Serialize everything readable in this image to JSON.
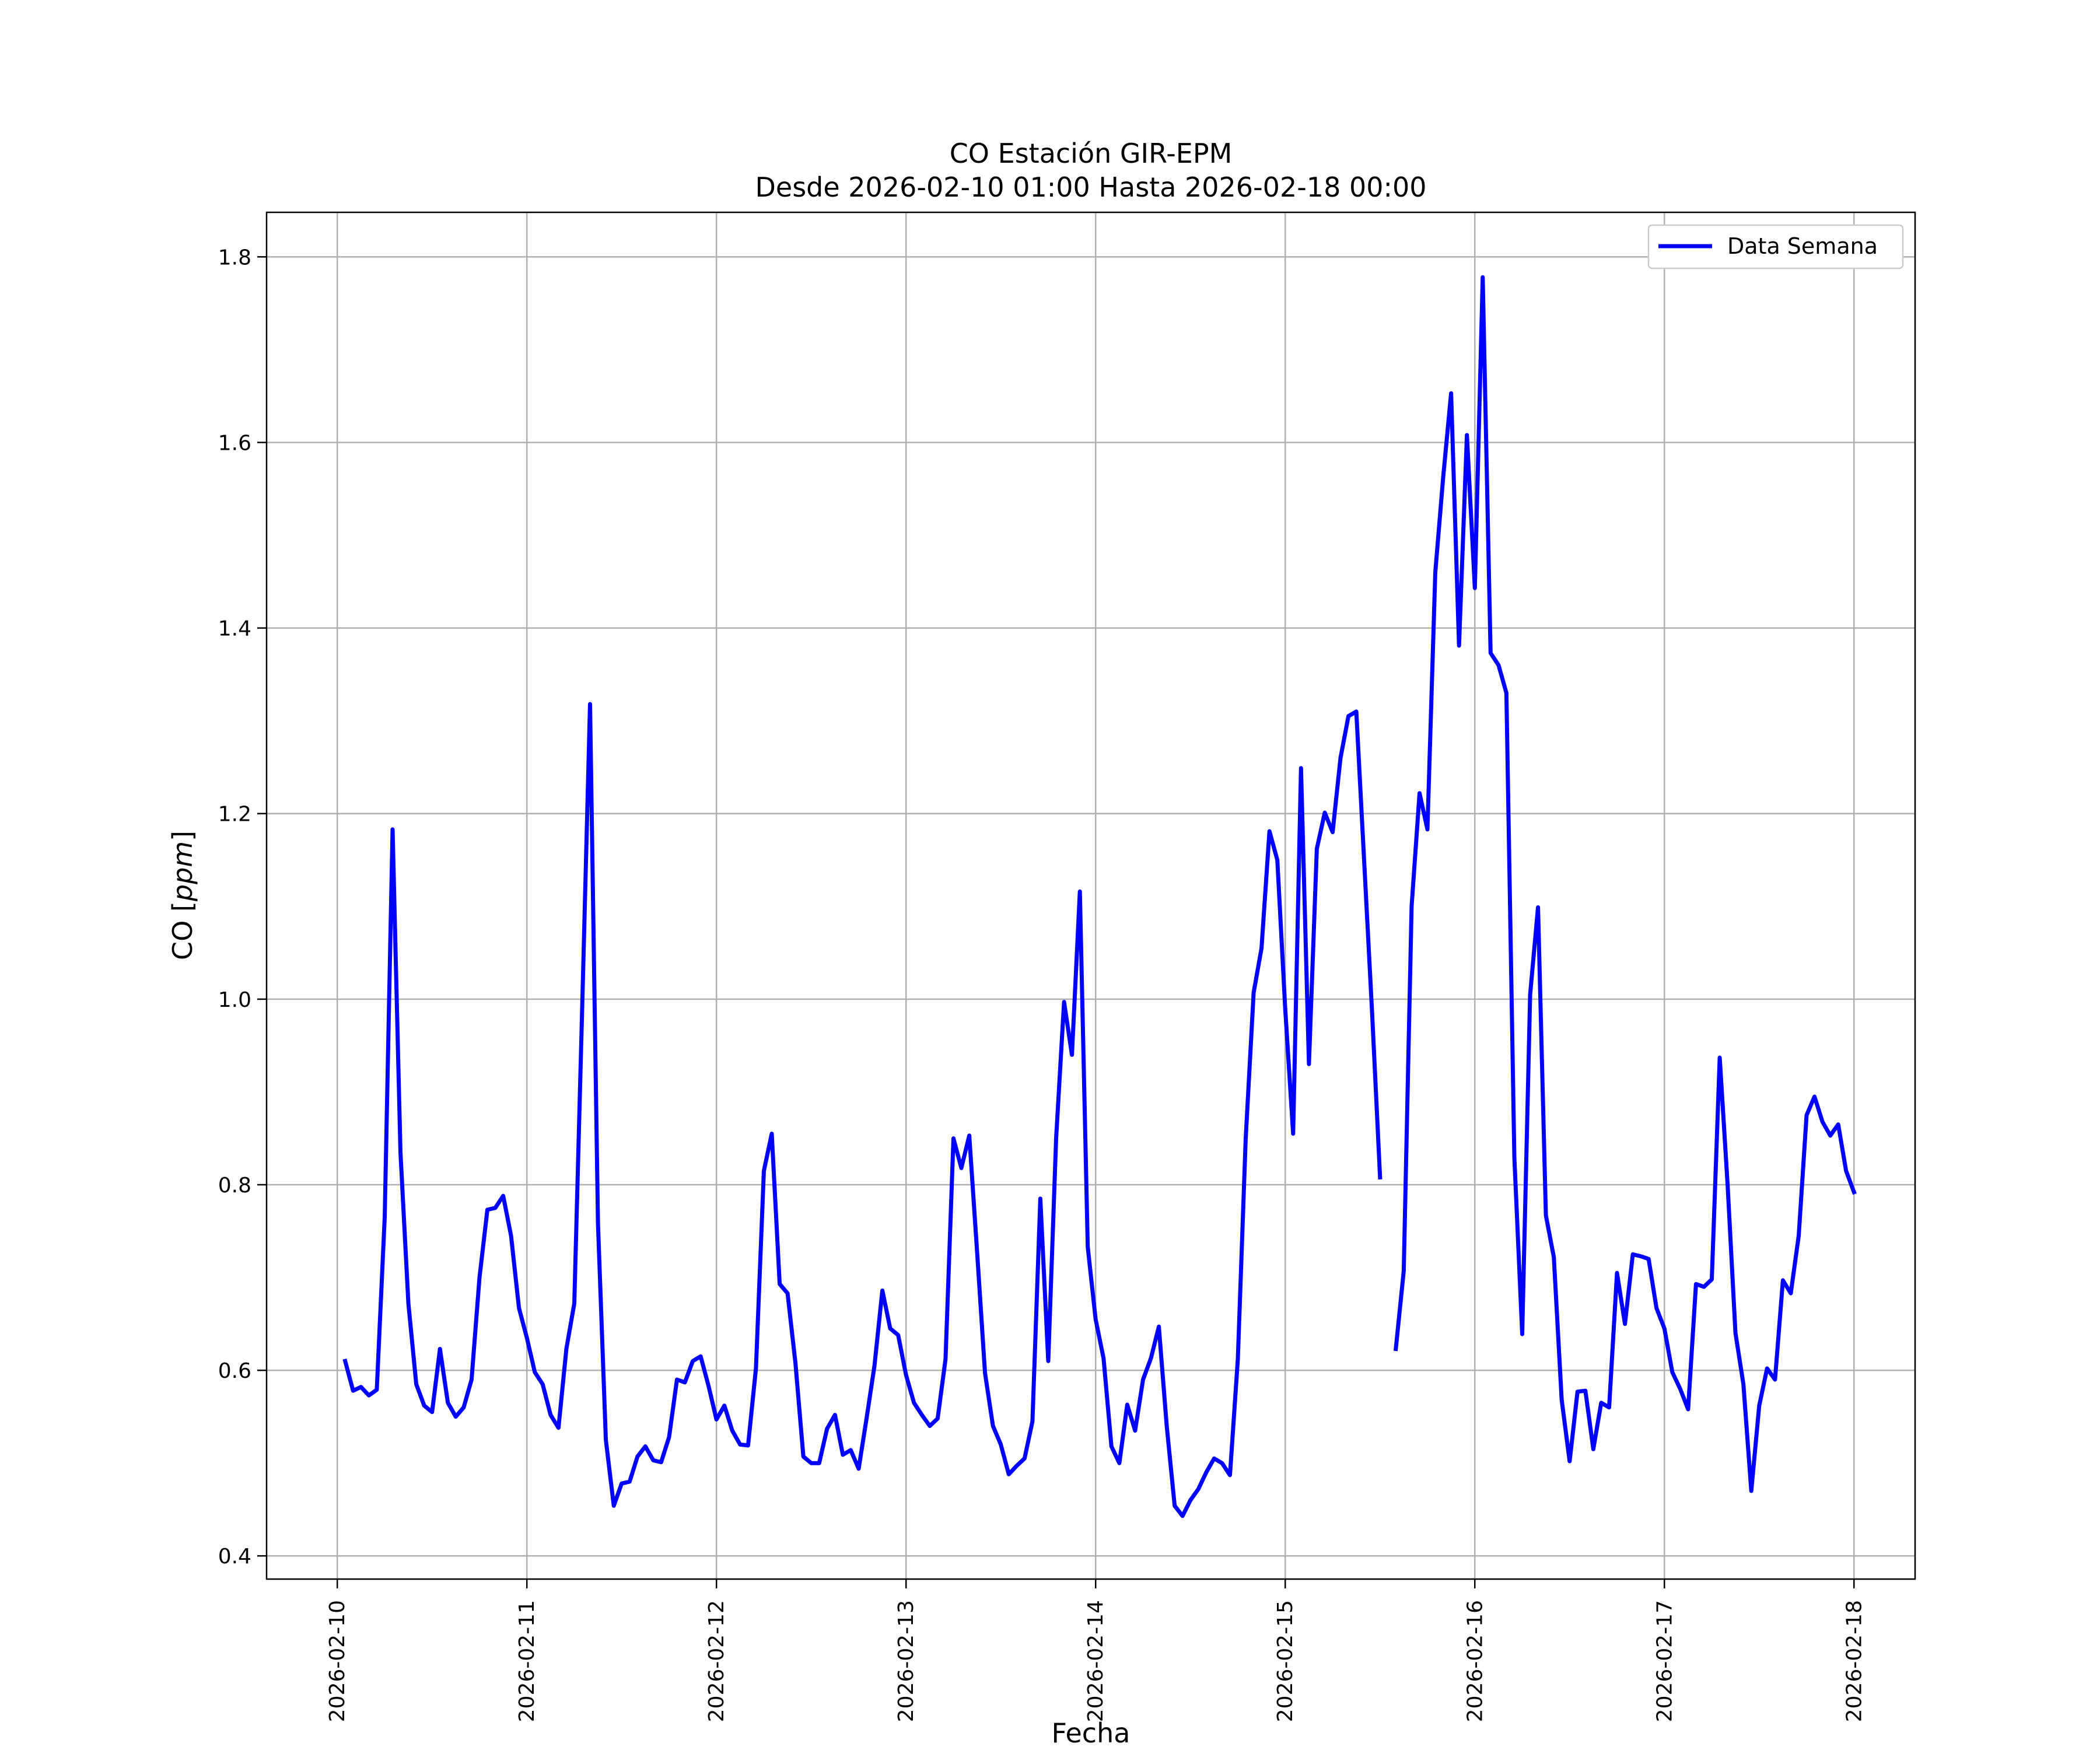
{
  "chart_data": {
    "type": "line",
    "title": "CO Estación GIR-EPM",
    "subtitle": "Desde 2026-02-10 01:00 Hasta 2026-02-18 00:00",
    "xlabel": "Fecha",
    "ylabel_main": "CO [",
    "ylabel_unit": "ppm",
    "ylabel_close": "]",
    "x_range": [
      "2026-02-09T15:03",
      "2026-02-18T07:44"
    ],
    "ylim": [
      0.375,
      1.848
    ],
    "x_ticks": [
      "2026-02-10",
      "2026-02-11",
      "2026-02-12",
      "2026-02-13",
      "2026-02-14",
      "2026-02-15",
      "2026-02-16",
      "2026-02-17",
      "2026-02-18"
    ],
    "y_ticks": [
      "0.4",
      "0.6",
      "0.8",
      "1.0",
      "1.2",
      "1.4",
      "1.6",
      "1.8"
    ],
    "grid": true,
    "legend_position": "upper right",
    "series": [
      {
        "name": "Data Semana",
        "color": "#0000ff",
        "segments": [
          [
            [
              "2026-02-10T01:00",
              0.61
            ],
            [
              "2026-02-10T02:00",
              0.578
            ],
            [
              "2026-02-10T03:00",
              0.582
            ],
            [
              "2026-02-10T04:00",
              0.573
            ],
            [
              "2026-02-10T05:00",
              0.579
            ],
            [
              "2026-02-10T06:00",
              0.765
            ],
            [
              "2026-02-10T07:00",
              1.183
            ],
            [
              "2026-02-10T08:00",
              0.835
            ],
            [
              "2026-02-10T09:00",
              0.672
            ],
            [
              "2026-02-10T10:00",
              0.585
            ],
            [
              "2026-02-10T11:00",
              0.562
            ],
            [
              "2026-02-10T12:00",
              0.555
            ],
            [
              "2026-02-10T13:00",
              0.623
            ],
            [
              "2026-02-10T14:00",
              0.565
            ],
            [
              "2026-02-10T15:00",
              0.55
            ],
            [
              "2026-02-10T16:00",
              0.56
            ],
            [
              "2026-02-10T17:00",
              0.59
            ],
            [
              "2026-02-10T18:00",
              0.7
            ],
            [
              "2026-02-10T19:00",
              0.773
            ],
            [
              "2026-02-10T20:00",
              0.775
            ],
            [
              "2026-02-10T21:00",
              0.788
            ],
            [
              "2026-02-10T22:00",
              0.745
            ],
            [
              "2026-02-10T23:00",
              0.667
            ],
            [
              "2026-02-11T00:00",
              0.635
            ],
            [
              "2026-02-11T01:00",
              0.598
            ],
            [
              "2026-02-11T02:00",
              0.585
            ],
            [
              "2026-02-11T03:00",
              0.552
            ],
            [
              "2026-02-11T04:00",
              0.538
            ],
            [
              "2026-02-11T05:00",
              0.623
            ],
            [
              "2026-02-11T06:00",
              0.672
            ],
            [
              "2026-02-11T07:00",
              0.99
            ],
            [
              "2026-02-11T08:00",
              1.318
            ],
            [
              "2026-02-11T09:00",
              0.758
            ],
            [
              "2026-02-11T10:00",
              0.525
            ],
            [
              "2026-02-11T11:00",
              0.454
            ],
            [
              "2026-02-11T12:00",
              0.478
            ],
            [
              "2026-02-11T13:00",
              0.48
            ],
            [
              "2026-02-11T14:00",
              0.507
            ],
            [
              "2026-02-11T15:00",
              0.518
            ],
            [
              "2026-02-11T16:00",
              0.503
            ],
            [
              "2026-02-11T17:00",
              0.501
            ],
            [
              "2026-02-11T18:00",
              0.528
            ],
            [
              "2026-02-11T19:00",
              0.59
            ],
            [
              "2026-02-11T20:00",
              0.587
            ],
            [
              "2026-02-11T21:00",
              0.61
            ],
            [
              "2026-02-11T22:00",
              0.615
            ],
            [
              "2026-02-11T23:00",
              0.583
            ],
            [
              "2026-02-12T00:00",
              0.547
            ],
            [
              "2026-02-12T01:00",
              0.562
            ],
            [
              "2026-02-12T02:00",
              0.535
            ],
            [
              "2026-02-12T03:00",
              0.52
            ],
            [
              "2026-02-12T04:00",
              0.519
            ],
            [
              "2026-02-12T05:00",
              0.602
            ],
            [
              "2026-02-12T06:00",
              0.815
            ],
            [
              "2026-02-12T07:00",
              0.855
            ],
            [
              "2026-02-12T08:00",
              0.693
            ],
            [
              "2026-02-12T09:00",
              0.683
            ],
            [
              "2026-02-12T10:00",
              0.608
            ],
            [
              "2026-02-12T11:00",
              0.507
            ],
            [
              "2026-02-12T12:00",
              0.5
            ],
            [
              "2026-02-12T13:00",
              0.5
            ],
            [
              "2026-02-12T14:00",
              0.537
            ],
            [
              "2026-02-12T15:00",
              0.552
            ],
            [
              "2026-02-12T16:00",
              0.509
            ],
            [
              "2026-02-12T17:00",
              0.514
            ],
            [
              "2026-02-12T18:00",
              0.494
            ],
            [
              "2026-02-12T19:00",
              0.548
            ],
            [
              "2026-02-12T20:00",
              0.605
            ],
            [
              "2026-02-12T21:00",
              0.686
            ],
            [
              "2026-02-12T22:00",
              0.645
            ],
            [
              "2026-02-12T23:00",
              0.638
            ],
            [
              "2026-02-13T00:00",
              0.595
            ],
            [
              "2026-02-13T01:00",
              0.565
            ],
            [
              "2026-02-13T02:00",
              0.552
            ],
            [
              "2026-02-13T03:00",
              0.54
            ],
            [
              "2026-02-13T04:00",
              0.548
            ],
            [
              "2026-02-13T05:00",
              0.612
            ],
            [
              "2026-02-13T06:00",
              0.85
            ],
            [
              "2026-02-13T07:00",
              0.818
            ],
            [
              "2026-02-13T08:00",
              0.853
            ],
            [
              "2026-02-13T09:00",
              0.727
            ],
            [
              "2026-02-13T10:00",
              0.597
            ],
            [
              "2026-02-13T11:00",
              0.54
            ],
            [
              "2026-02-13T12:00",
              0.52
            ],
            [
              "2026-02-13T13:00",
              0.488
            ],
            [
              "2026-02-13T14:00",
              0.497
            ],
            [
              "2026-02-13T15:00",
              0.505
            ],
            [
              "2026-02-13T16:00",
              0.545
            ],
            [
              "2026-02-13T17:00",
              0.785
            ],
            [
              "2026-02-13T18:00",
              0.61
            ],
            [
              "2026-02-13T19:00",
              0.85
            ],
            [
              "2026-02-13T20:00",
              0.997
            ],
            [
              "2026-02-13T21:00",
              0.94
            ],
            [
              "2026-02-13T22:00",
              1.116
            ],
            [
              "2026-02-13T23:00",
              0.733
            ],
            [
              "2026-02-14T00:00",
              0.655
            ],
            [
              "2026-02-14T01:00",
              0.613
            ],
            [
              "2026-02-14T02:00",
              0.518
            ],
            [
              "2026-02-14T03:00",
              0.5
            ],
            [
              "2026-02-14T04:00",
              0.563
            ],
            [
              "2026-02-14T05:00",
              0.535
            ],
            [
              "2026-02-14T06:00",
              0.59
            ],
            [
              "2026-02-14T07:00",
              0.613
            ],
            [
              "2026-02-14T08:00",
              0.647
            ],
            [
              "2026-02-14T09:00",
              0.54
            ],
            [
              "2026-02-14T10:00",
              0.454
            ],
            [
              "2026-02-14T11:00",
              0.443
            ],
            [
              "2026-02-14T12:00",
              0.46
            ],
            [
              "2026-02-14T13:00",
              0.472
            ],
            [
              "2026-02-14T14:00",
              0.49
            ],
            [
              "2026-02-14T15:00",
              0.505
            ],
            [
              "2026-02-14T16:00",
              0.5
            ],
            [
              "2026-02-14T17:00",
              0.487
            ],
            [
              "2026-02-14T18:00",
              0.612
            ],
            [
              "2026-02-14T19:00",
              0.85
            ],
            [
              "2026-02-14T20:00",
              1.007
            ],
            [
              "2026-02-14T21:00",
              1.055
            ],
            [
              "2026-02-14T22:00",
              1.181
            ],
            [
              "2026-02-14T23:00",
              1.15
            ],
            [
              "2026-02-15T00:00",
              0.99
            ],
            [
              "2026-02-15T01:00",
              0.855
            ],
            [
              "2026-02-15T02:00",
              1.249
            ],
            [
              "2026-02-15T03:00",
              0.93
            ],
            [
              "2026-02-15T04:00",
              1.162
            ],
            [
              "2026-02-15T05:00",
              1.201
            ],
            [
              "2026-02-15T06:00",
              1.18
            ],
            [
              "2026-02-15T07:00",
              1.26
            ],
            [
              "2026-02-15T08:00",
              1.305
            ],
            [
              "2026-02-15T09:00",
              1.31
            ],
            [
              "2026-02-15T10:00",
              1.147
            ],
            [
              "2026-02-15T11:00",
              0.985
            ],
            [
              "2026-02-15T12:00",
              0.808
            ]
          ],
          [
            [
              "2026-02-15T14:00",
              0.623
            ],
            [
              "2026-02-15T15:00",
              0.707
            ],
            [
              "2026-02-15T16:00",
              1.1
            ],
            [
              "2026-02-15T17:00",
              1.222
            ],
            [
              "2026-02-15T18:00",
              1.183
            ],
            [
              "2026-02-15T19:00",
              1.46
            ],
            [
              "2026-02-15T20:00",
              1.563
            ],
            [
              "2026-02-15T21:00",
              1.653
            ],
            [
              "2026-02-15T22:00",
              1.381
            ],
            [
              "2026-02-15T23:00",
              1.608
            ],
            [
              "2026-02-16T00:00",
              1.443
            ],
            [
              "2026-02-16T01:00",
              1.778
            ],
            [
              "2026-02-16T02:00",
              1.373
            ],
            [
              "2026-02-16T03:00",
              1.36
            ],
            [
              "2026-02-16T04:00",
              1.33
            ],
            [
              "2026-02-16T05:00",
              0.83
            ],
            [
              "2026-02-16T06:00",
              0.639
            ],
            [
              "2026-02-16T07:00",
              1.005
            ],
            [
              "2026-02-16T08:00",
              1.099
            ],
            [
              "2026-02-16T09:00",
              0.767
            ],
            [
              "2026-02-16T10:00",
              0.722
            ],
            [
              "2026-02-16T11:00",
              0.568
            ],
            [
              "2026-02-16T12:00",
              0.502
            ],
            [
              "2026-02-16T13:00",
              0.577
            ],
            [
              "2026-02-16T14:00",
              0.578
            ],
            [
              "2026-02-16T15:00",
              0.515
            ],
            [
              "2026-02-16T16:00",
              0.565
            ],
            [
              "2026-02-16T17:00",
              0.56
            ],
            [
              "2026-02-16T18:00",
              0.705
            ],
            [
              "2026-02-16T19:00",
              0.65
            ],
            [
              "2026-02-16T20:00",
              0.725
            ],
            [
              "2026-02-16T21:00",
              0.723
            ],
            [
              "2026-02-16T22:00",
              0.72
            ],
            [
              "2026-02-16T23:00",
              0.667
            ],
            [
              "2026-02-17T00:00",
              0.645
            ],
            [
              "2026-02-17T01:00",
              0.598
            ],
            [
              "2026-02-17T02:00",
              0.58
            ],
            [
              "2026-02-17T03:00",
              0.558
            ],
            [
              "2026-02-17T04:00",
              0.693
            ],
            [
              "2026-02-17T05:00",
              0.69
            ],
            [
              "2026-02-17T06:00",
              0.698
            ],
            [
              "2026-02-17T07:00",
              0.937
            ],
            [
              "2026-02-17T08:00",
              0.8
            ],
            [
              "2026-02-17T09:00",
              0.64
            ],
            [
              "2026-02-17T10:00",
              0.585
            ],
            [
              "2026-02-17T11:00",
              0.47
            ],
            [
              "2026-02-17T12:00",
              0.562
            ],
            [
              "2026-02-17T13:00",
              0.602
            ],
            [
              "2026-02-17T14:00",
              0.59
            ],
            [
              "2026-02-17T15:00",
              0.697
            ],
            [
              "2026-02-17T16:00",
              0.683
            ],
            [
              "2026-02-17T17:00",
              0.745
            ],
            [
              "2026-02-17T18:00",
              0.875
            ],
            [
              "2026-02-17T19:00",
              0.895
            ],
            [
              "2026-02-17T20:00",
              0.868
            ],
            [
              "2026-02-17T21:00",
              0.853
            ],
            [
              "2026-02-17T22:00",
              0.865
            ],
            [
              "2026-02-17T23:00",
              0.815
            ],
            [
              "2026-02-18T00:00",
              0.792
            ]
          ]
        ]
      }
    ]
  }
}
